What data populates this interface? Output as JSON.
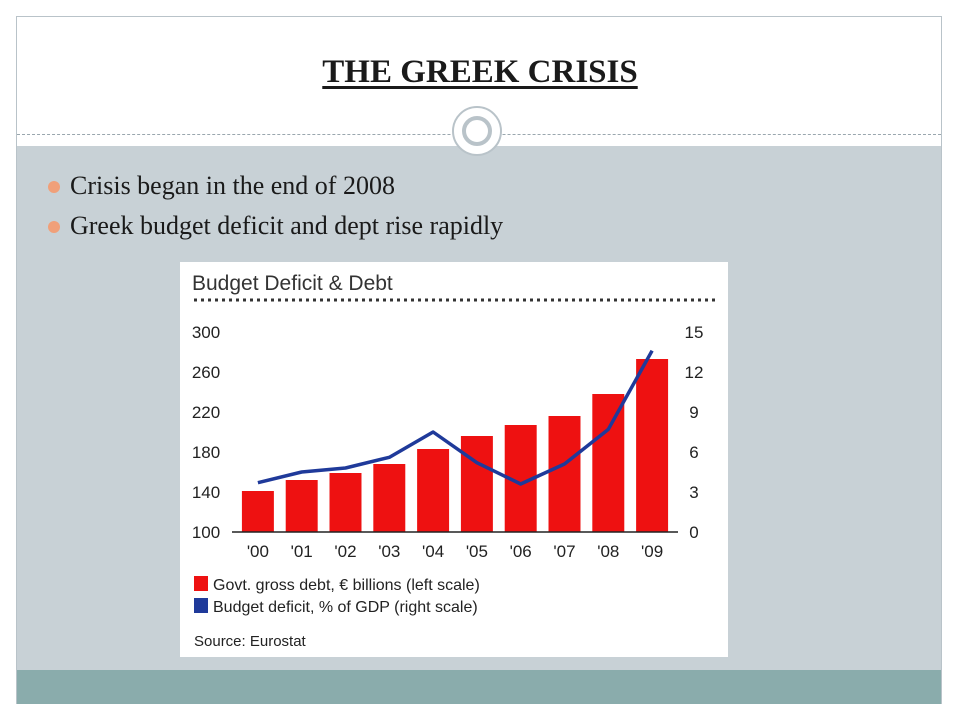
{
  "slide": {
    "title": "THE GREEK CRISIS",
    "bullets": [
      "Crisis began in the end of 2008",
      "Greek budget deficit and dept rise rapidly"
    ],
    "colors": {
      "bullet": "#f0a07a",
      "body_panel": "#c8d1d6",
      "footer_band": "#8aacac"
    }
  },
  "chart_data": {
    "type": "bar",
    "title": "Budget Deficit & Debt",
    "categories": [
      "'00",
      "'01",
      "'02",
      "'03",
      "'04",
      "'05",
      "'06",
      "'07",
      "'08",
      "'09"
    ],
    "series": [
      {
        "name": "Govt. gross debt, € billions (left scale)",
        "type": "bar",
        "axis": "left",
        "color": "#ee1111",
        "values": [
          141,
          152,
          159,
          168,
          183,
          196,
          207,
          216,
          238,
          273
        ]
      },
      {
        "name": "Budget deficit, % of GDP (right scale)",
        "type": "line",
        "axis": "right",
        "color": "#1f3a9a",
        "values": [
          3.7,
          4.5,
          4.8,
          5.6,
          7.5,
          5.2,
          3.6,
          5.1,
          7.7,
          13.6
        ]
      }
    ],
    "left_axis": {
      "ylim": [
        100,
        300
      ],
      "ticks": [
        "300",
        "260",
        "220",
        "180",
        "140",
        "100"
      ]
    },
    "right_axis": {
      "ylim": [
        0,
        15
      ],
      "ticks": [
        "15",
        "12",
        "9",
        "6",
        "3",
        "0"
      ]
    },
    "grid": false,
    "legend_position": "bottom-left",
    "source": "Source: Eurostat"
  }
}
